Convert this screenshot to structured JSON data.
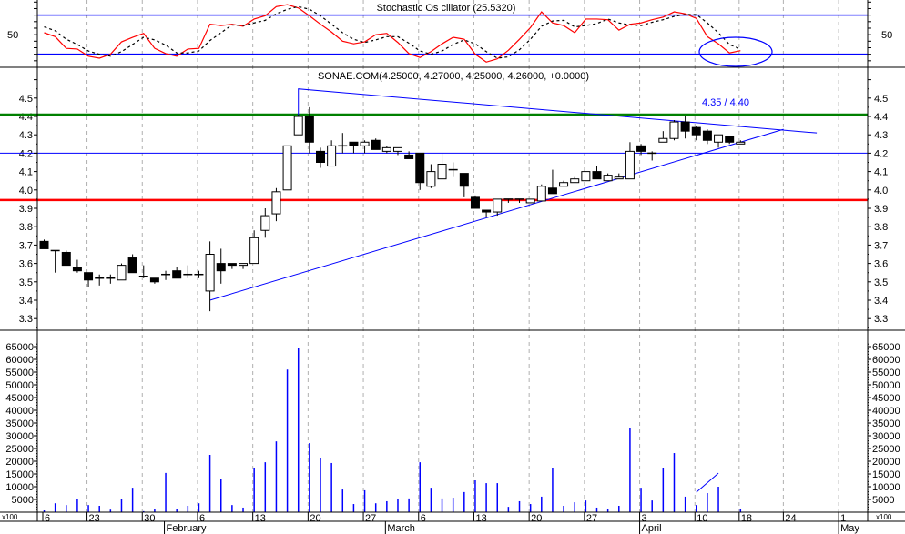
{
  "chart_data": [
    {
      "type": "line",
      "title": "Stochastic Os cillator (25.5320)",
      "y_tick_labels": [
        "50"
      ],
      "reference_levels": [
        80,
        20
      ],
      "ylim": [
        0,
        103
      ],
      "series": [
        {
          "color": "#ff0000",
          "style": "solid",
          "values": [
            53,
            47,
            29,
            28,
            17,
            14,
            20,
            39,
            46,
            52,
            29,
            21,
            17,
            28,
            29,
            66,
            64,
            66,
            63,
            74,
            79,
            93,
            96,
            91,
            79,
            66,
            54,
            40,
            36,
            39,
            50,
            52,
            38,
            21,
            15,
            24,
            36,
            46,
            43,
            20,
            8,
            13,
            26,
            43,
            61,
            85,
            68,
            64,
            53,
            74,
            74,
            73,
            57,
            66,
            68,
            73,
            77,
            85,
            82,
            75,
            47,
            36,
            22,
            25.532
          ]
        },
        {
          "color": "#000000",
          "style": "dashed",
          "values": [
            62,
            56,
            43,
            35,
            25,
            20,
            17,
            24,
            35,
            46,
            42,
            34,
            22,
            22,
            25,
            41,
            53,
            65,
            64,
            68,
            72,
            82,
            89,
            93,
            89,
            79,
            66,
            53,
            43,
            38,
            42,
            47,
            47,
            37,
            25,
            20,
            25,
            35,
            42,
            36,
            24,
            14,
            16,
            27,
            43,
            63,
            71,
            72,
            62,
            64,
            67,
            74,
            68,
            65,
            64,
            69,
            73,
            78,
            81,
            81,
            68,
            53,
            35,
            28
          ]
        }
      ],
      "annotation_ellipse": {
        "color": "#0000ff",
        "around": "last values"
      }
    },
    {
      "type": "candlestick",
      "title": "SONAE.COM(4.25000, 4.27000, 4.25000, 4.26000, +0.0000)",
      "y_tick_labels": [
        "4.5",
        "4.4",
        "4.3",
        "4.2",
        "4.1",
        "4.0",
        "3.9",
        "3.8",
        "3.7",
        "3.6",
        "3.5",
        "3.4",
        "3.3"
      ],
      "ylim": [
        3.19,
        4.63
      ],
      "ohlc": [
        [
          3.72,
          3.73,
          3.68,
          3.68
        ],
        [
          3.67,
          3.67,
          3.55,
          3.67
        ],
        [
          3.66,
          3.67,
          3.59,
          3.59
        ],
        [
          3.58,
          3.62,
          3.55,
          3.56
        ],
        [
          3.55,
          3.55,
          3.47,
          3.51
        ],
        [
          3.52,
          3.54,
          3.48,
          3.52
        ],
        [
          3.52,
          3.54,
          3.49,
          3.52
        ],
        [
          3.51,
          3.6,
          3.51,
          3.59
        ],
        [
          3.63,
          3.65,
          3.55,
          3.55
        ],
        [
          3.53,
          3.59,
          3.52,
          3.53
        ],
        [
          3.52,
          3.52,
          3.49,
          3.5
        ],
        [
          3.54,
          3.56,
          3.51,
          3.54
        ],
        [
          3.56,
          3.58,
          3.52,
          3.52
        ],
        [
          3.54,
          3.59,
          3.52,
          3.54
        ],
        [
          3.54,
          3.56,
          3.52,
          3.54
        ],
        [
          3.45,
          3.72,
          3.34,
          3.65
        ],
        [
          3.6,
          3.68,
          3.49,
          3.56
        ],
        [
          3.6,
          3.6,
          3.57,
          3.59
        ],
        [
          3.59,
          3.6,
          3.57,
          3.6
        ],
        [
          3.6,
          3.78,
          3.6,
          3.74
        ],
        [
          3.78,
          3.9,
          3.74,
          3.86
        ],
        [
          3.87,
          4.01,
          3.83,
          3.99
        ],
        [
          4.0,
          4.24,
          4.0,
          4.24
        ],
        [
          4.3,
          4.41,
          4.3,
          4.4
        ],
        [
          4.4,
          4.45,
          4.2,
          4.26
        ],
        [
          4.21,
          4.23,
          4.12,
          4.15
        ],
        [
          4.13,
          4.27,
          4.13,
          4.24
        ],
        [
          4.24,
          4.31,
          4.2,
          4.24
        ],
        [
          4.26,
          4.26,
          4.2,
          4.24
        ],
        [
          4.24,
          4.27,
          4.2,
          4.26
        ],
        [
          4.27,
          4.28,
          4.22,
          4.22
        ],
        [
          4.21,
          4.24,
          4.2,
          4.23
        ],
        [
          4.21,
          4.23,
          4.19,
          4.23
        ],
        [
          4.19,
          4.21,
          4.17,
          4.17
        ],
        [
          4.2,
          4.2,
          4.0,
          4.04
        ],
        [
          4.02,
          4.14,
          4.01,
          4.1
        ],
        [
          4.06,
          4.2,
          4.06,
          4.14
        ],
        [
          4.11,
          4.15,
          4.07,
          4.11
        ],
        [
          4.09,
          4.09,
          3.96,
          4.02
        ],
        [
          3.96,
          3.97,
          3.9,
          3.9
        ],
        [
          3.89,
          3.89,
          3.85,
          3.88
        ],
        [
          3.88,
          3.95,
          3.86,
          3.95
        ],
        [
          3.95,
          3.95,
          3.93,
          3.95
        ],
        [
          3.95,
          3.95,
          3.93,
          3.95
        ],
        [
          3.93,
          3.95,
          3.93,
          3.95
        ],
        [
          3.94,
          4.03,
          3.94,
          4.02
        ],
        [
          4.01,
          4.11,
          3.98,
          3.98
        ],
        [
          4.02,
          4.05,
          4.02,
          4.04
        ],
        [
          4.04,
          4.07,
          4.04,
          4.06
        ],
        [
          4.05,
          4.1,
          4.05,
          4.1
        ],
        [
          4.1,
          4.13,
          4.06,
          4.06
        ],
        [
          4.05,
          4.09,
          4.05,
          4.08
        ],
        [
          4.06,
          4.09,
          4.06,
          4.07
        ],
        [
          4.06,
          4.26,
          4.06,
          4.21
        ],
        [
          4.24,
          4.25,
          4.19,
          4.21
        ],
        [
          4.2,
          4.21,
          4.16,
          4.2
        ],
        [
          4.26,
          4.32,
          4.26,
          4.28
        ],
        [
          4.28,
          4.38,
          4.27,
          4.37
        ],
        [
          4.37,
          4.4,
          4.28,
          4.32
        ],
        [
          4.34,
          4.35,
          4.27,
          4.3
        ],
        [
          4.32,
          4.33,
          4.25,
          4.27
        ],
        [
          4.26,
          4.3,
          4.23,
          4.3
        ],
        [
          4.29,
          4.29,
          4.25,
          4.26
        ],
        [
          4.25,
          4.27,
          4.25,
          4.26
        ]
      ],
      "horizontal_levels": [
        {
          "price": 4.41,
          "color": "#008000"
        },
        {
          "price": 4.2,
          "color": "#0000ff"
        },
        {
          "price": 3.945,
          "color": "#ff0000"
        }
      ],
      "trendlines": [
        {
          "color": "#0000ff",
          "points": [
            [
              23,
              4.4
            ],
            [
              23,
              4.55
            ],
            [
              69.9,
              4.31
            ]
          ]
        },
        {
          "color": "#0000ff",
          "points": [
            [
              15,
              3.4
            ],
            [
              66.9,
              4.33
            ]
          ]
        }
      ],
      "annotation_text": "4.35 / 4.40",
      "annotation_color": "#0000ff"
    },
    {
      "type": "bar",
      "y_tick_labels": [
        "65000",
        "60000",
        "55000",
        "50000",
        "45000",
        "40000",
        "35000",
        "30000",
        "25000",
        "20000",
        "15000",
        "10000",
        "5000"
      ],
      "unit_label": "x100",
      "ylim": [
        0,
        65000
      ],
      "color": "#0000ff",
      "values": [
        700,
        3500,
        2800,
        5000,
        2800,
        2500,
        1000,
        5000,
        9600,
        400,
        1400,
        15400,
        1400,
        2500,
        3500,
        22500,
        12900,
        2800,
        1800,
        17500,
        19600,
        27800,
        56000,
        64600,
        27100,
        21400,
        19300,
        8900,
        3200,
        8600,
        3500,
        4300,
        5000,
        5400,
        19600,
        9600,
        5400,
        5700,
        7900,
        12500,
        11400,
        11400,
        2100,
        4300,
        3200,
        6100,
        17500,
        2500,
        3900,
        4600,
        1800,
        1100,
        2500,
        32900,
        9600,
        4600,
        17500,
        23200,
        6100,
        2800,
        7500,
        10000,
        0,
        1400
      ],
      "trendline": {
        "color": "#0000ff",
        "points": [
          [
            59,
            7800
          ],
          [
            61,
            15300
          ]
        ]
      }
    }
  ],
  "x_axis": {
    "day_ticks": [
      {
        "label": "6",
        "day_index": 0
      },
      {
        "label": "23",
        "day_index": 4
      },
      {
        "label": "30",
        "day_index": 9
      },
      {
        "label": "6",
        "day_index": 14
      },
      {
        "label": "13",
        "day_index": 19
      },
      {
        "label": "20",
        "day_index": 24
      },
      {
        "label": "27",
        "day_index": 29
      },
      {
        "label": "6",
        "day_index": 34
      },
      {
        "label": "13",
        "day_index": 39
      },
      {
        "label": "20",
        "day_index": 44
      },
      {
        "label": "27",
        "day_index": 49
      },
      {
        "label": "3",
        "day_index": 54
      },
      {
        "label": "10",
        "day_index": 59
      },
      {
        "label": "18",
        "day_index": 63
      },
      {
        "label": "24",
        "day_index": 67
      },
      {
        "label": "1",
        "day_index": 72
      }
    ],
    "months": [
      {
        "label": "February",
        "day_index": 11
      },
      {
        "label": "March",
        "day_index": 31
      },
      {
        "label": "April",
        "day_index": 54
      },
      {
        "label": "May",
        "day_index": 72
      }
    ]
  }
}
